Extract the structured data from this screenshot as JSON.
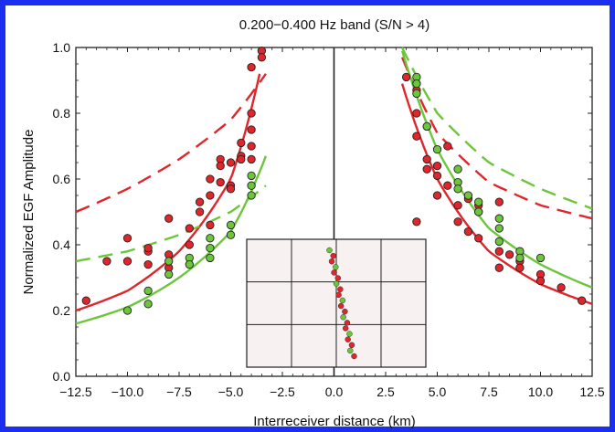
{
  "chart_data": {
    "type": "scatter",
    "title": "0.200−0.400 Hz band  (S/N > 4)",
    "xlabel": "Interreceiver distance (km)",
    "ylabel": "Normalized EGF Amplitude",
    "xlim": [
      -12.5,
      12.5
    ],
    "ylim": [
      0.0,
      1.0
    ],
    "xticks": [
      -12.5,
      -10.0,
      -7.5,
      -5.0,
      -2.5,
      0.0,
      2.5,
      5.0,
      7.5,
      10.0,
      12.5
    ],
    "xtick_labels": [
      "−12.5",
      "−10.0",
      "−7.5",
      "−5.0",
      "−2.5",
      "0.0",
      "2.5",
      "5.0",
      "7.5",
      "10.0",
      "12.5"
    ],
    "yticks": [
      0.0,
      0.2,
      0.4,
      0.6,
      0.8,
      1.0
    ],
    "ytick_labels": [
      "0.0",
      "0.2",
      "0.4",
      "0.6",
      "0.8",
      "1.0"
    ],
    "grid": false,
    "colors": {
      "red": "#e0262b",
      "green": "#6cc63c",
      "frame": "#1a2ff0"
    },
    "series": [
      {
        "color": "red",
        "points": [
          [
            -12,
            0.23
          ],
          [
            -11,
            0.35
          ],
          [
            -10,
            0.42
          ],
          [
            -10,
            0.35
          ],
          [
            -9,
            0.38
          ],
          [
            -9,
            0.34
          ],
          [
            -9,
            0.39
          ],
          [
            -8,
            0.48
          ],
          [
            -8,
            0.37
          ],
          [
            -8,
            0.33
          ],
          [
            -7,
            0.45
          ],
          [
            -7,
            0.4
          ],
          [
            -6.5,
            0.53
          ],
          [
            -6.5,
            0.5
          ],
          [
            -6,
            0.6
          ],
          [
            -6,
            0.55
          ],
          [
            -6,
            0.46
          ],
          [
            -5.5,
            0.66
          ],
          [
            -5.5,
            0.64
          ],
          [
            -5.5,
            0.59
          ],
          [
            -5,
            0.65
          ],
          [
            -5,
            0.58
          ],
          [
            -5,
            0.57
          ],
          [
            -4.5,
            0.71
          ],
          [
            -4.5,
            0.67
          ],
          [
            -4.5,
            0.66
          ],
          [
            -4,
            0.8
          ],
          [
            -4,
            0.75
          ],
          [
            -4,
            0.7
          ],
          [
            -4,
            0.66
          ],
          [
            -3.5,
            0.99
          ],
          [
            -3.5,
            0.97
          ],
          [
            -4,
            0.94
          ],
          [
            3.5,
            0.91
          ],
          [
            4,
            0.87
          ],
          [
            4,
            0.8
          ],
          [
            4,
            0.73
          ],
          [
            4.5,
            0.76
          ],
          [
            4.5,
            0.66
          ],
          [
            4.5,
            0.63
          ],
          [
            5,
            0.64
          ],
          [
            5,
            0.61
          ],
          [
            5,
            0.55
          ],
          [
            5.5,
            0.7
          ],
          [
            5.5,
            0.58
          ],
          [
            6,
            0.52
          ],
          [
            6,
            0.47
          ],
          [
            6.5,
            0.54
          ],
          [
            6.5,
            0.44
          ],
          [
            7,
            0.52
          ],
          [
            7,
            0.5
          ],
          [
            7,
            0.42
          ],
          [
            8,
            0.53
          ],
          [
            8,
            0.38
          ],
          [
            8,
            0.33
          ],
          [
            8.5,
            0.37
          ],
          [
            9,
            0.35
          ],
          [
            9,
            0.33
          ],
          [
            10,
            0.31
          ],
          [
            10,
            0.29
          ],
          [
            11,
            0.27
          ],
          [
            12,
            0.23
          ],
          [
            4,
            0.47
          ]
        ]
      },
      {
        "color": "green",
        "points": [
          [
            -10,
            0.2
          ],
          [
            -9,
            0.26
          ],
          [
            -9,
            0.22
          ],
          [
            -8,
            0.35
          ],
          [
            -8,
            0.31
          ],
          [
            -7,
            0.36
          ],
          [
            -7,
            0.34
          ],
          [
            -6,
            0.42
          ],
          [
            -6,
            0.39
          ],
          [
            -6,
            0.36
          ],
          [
            -5,
            0.46
          ],
          [
            -5,
            0.43
          ],
          [
            -4,
            0.61
          ],
          [
            -4,
            0.58
          ],
          [
            -4,
            0.55
          ],
          [
            4,
            0.91
          ],
          [
            4,
            0.89
          ],
          [
            4,
            0.86
          ],
          [
            4.5,
            0.76
          ],
          [
            5,
            0.69
          ],
          [
            6,
            0.63
          ],
          [
            6,
            0.59
          ],
          [
            6,
            0.57
          ],
          [
            6.5,
            0.55
          ],
          [
            7,
            0.53
          ],
          [
            7,
            0.5
          ],
          [
            8,
            0.48
          ],
          [
            8,
            0.45
          ],
          [
            8,
            0.41
          ],
          [
            9,
            0.38
          ],
          [
            9,
            0.36
          ],
          [
            10,
            0.36
          ]
        ]
      }
    ],
    "fit_curves": [
      {
        "color": "red",
        "style": "solid",
        "side": "left",
        "x_range": [
          -12.5,
          -3.3
        ],
        "values": [
          [
            -12.5,
            0.2
          ],
          [
            -10,
            0.26
          ],
          [
            -7.5,
            0.38
          ],
          [
            -5,
            0.6
          ],
          [
            -3.6,
            0.92
          ]
        ]
      },
      {
        "color": "red",
        "style": "dashed",
        "side": "left",
        "x_range": [
          -12.5,
          -3.3
        ],
        "values": [
          [
            -12.5,
            0.5
          ],
          [
            -10,
            0.57
          ],
          [
            -7.5,
            0.66
          ],
          [
            -5,
            0.78
          ],
          [
            -3.3,
            0.92
          ]
        ]
      },
      {
        "color": "green",
        "style": "solid",
        "side": "left",
        "x_range": [
          -12.5,
          -3.3
        ],
        "values": [
          [
            -12.5,
            0.16
          ],
          [
            -10,
            0.21
          ],
          [
            -7.5,
            0.3
          ],
          [
            -5,
            0.44
          ],
          [
            -3.3,
            0.67
          ]
        ]
      },
      {
        "color": "green",
        "style": "dashed",
        "side": "left",
        "x_range": [
          -12.5,
          -3.3
        ],
        "values": [
          [
            -12.5,
            0.35
          ],
          [
            -10,
            0.38
          ],
          [
            -7.5,
            0.43
          ],
          [
            -5,
            0.5
          ],
          [
            -3.3,
            0.58
          ]
        ]
      },
      {
        "color": "red",
        "style": "solid",
        "side": "right",
        "x_range": [
          3.3,
          12.5
        ],
        "values": [
          [
            3.3,
            0.89
          ],
          [
            5,
            0.6
          ],
          [
            7.5,
            0.38
          ],
          [
            10,
            0.28
          ],
          [
            12.5,
            0.22
          ]
        ]
      },
      {
        "color": "red",
        "style": "dashed",
        "side": "right",
        "x_range": [
          3.3,
          12.5
        ],
        "values": [
          [
            3.3,
            0.97
          ],
          [
            5,
            0.74
          ],
          [
            7.5,
            0.59
          ],
          [
            10,
            0.52
          ],
          [
            12.5,
            0.48
          ]
        ]
      },
      {
        "color": "green",
        "style": "solid",
        "side": "right",
        "x_range": [
          3.3,
          12.5
        ],
        "values": [
          [
            3.3,
            0.99
          ],
          [
            5,
            0.69
          ],
          [
            7.5,
            0.45
          ],
          [
            10,
            0.34
          ],
          [
            12.5,
            0.27
          ]
        ]
      },
      {
        "color": "green",
        "style": "dashed",
        "side": "right",
        "x_range": [
          3.3,
          12.5
        ],
        "values": [
          [
            3.3,
            1.0
          ],
          [
            5,
            0.8
          ],
          [
            7.5,
            0.65
          ],
          [
            10,
            0.57
          ],
          [
            12.5,
            0.51
          ]
        ]
      }
    ],
    "inset": {
      "grid_rows": 3,
      "grid_cols": 4,
      "background": "#f8f1f1",
      "station_points": 20
    }
  }
}
